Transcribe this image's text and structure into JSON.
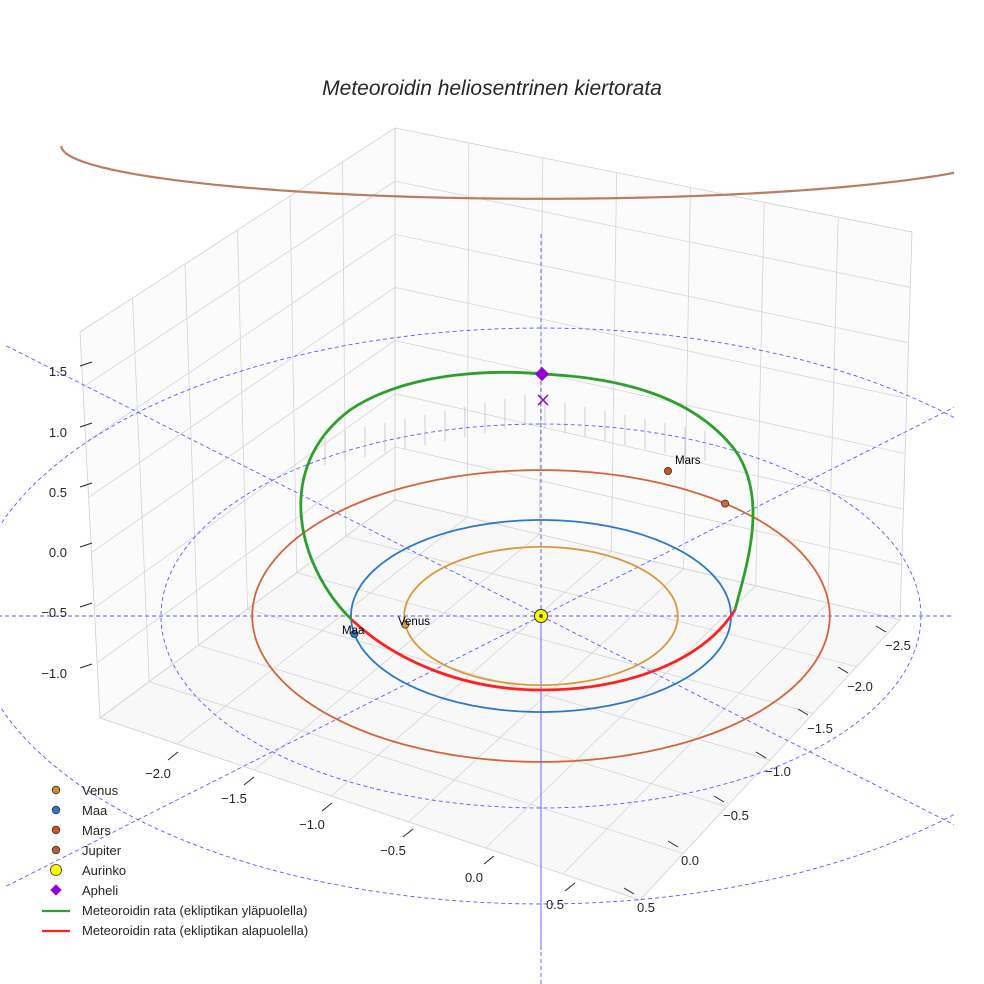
{
  "chart_data": {
    "type": "3d-line",
    "title": "Meteoroidin heliosentrinen kiertorata",
    "axes": {
      "x": {
        "ticks": [
          "−2.0",
          "−1.5",
          "−1.0",
          "−0.5",
          "0.0",
          "0.5"
        ],
        "range": [
          -2.3,
          0.7
        ]
      },
      "y": {
        "ticks": [
          "−2.5",
          "−2.0",
          "−1.5",
          "−1.0",
          "−0.5",
          "0.0",
          "0.5"
        ],
        "range": [
          -2.7,
          0.7
        ]
      },
      "z": {
        "ticks": [
          "−1.0",
          "−0.5",
          "0.0",
          "0.5",
          "1.0",
          "1.5"
        ],
        "range": [
          -1.45,
          1.75
        ]
      }
    },
    "planets": [
      {
        "name": "Venus",
        "orbit_radius_au": 0.72,
        "color": "#d99a3c",
        "label": "Venus"
      },
      {
        "name": "Maa",
        "orbit_radius_au": 1.0,
        "color": "#2e79c7",
        "label": "Maa"
      },
      {
        "name": "Mars",
        "orbit_radius_au": 1.52,
        "color": "#d4643a",
        "label": "Mars"
      },
      {
        "name": "Jupiter",
        "orbit_radius_au": 5.2,
        "color": "#b87e5e",
        "label": ""
      }
    ],
    "sun": {
      "name": "Aurinko",
      "color": "#ffff00"
    },
    "meteoroid": {
      "above_ecliptic": {
        "name": "Meteoroidin rata (ekliptikan yläpuolella)",
        "color": "#2ca02c"
      },
      "below_ecliptic": {
        "name": "Meteoroidin rata (ekliptikan alapuolella)",
        "color": "#ff2020"
      }
    },
    "aphelion": {
      "name": "Apheli",
      "color": "#9400d3",
      "z_au": 1.45
    },
    "reference_grid": {
      "circles_au": [
        1,
        2,
        3
      ],
      "color": "#5a5aff"
    }
  },
  "legend": [
    {
      "label": "Venus",
      "kind": "marker",
      "color": "#d98a1e",
      "shape": "circle"
    },
    {
      "label": "Maa",
      "kind": "marker",
      "color": "#2e79c7",
      "shape": "circle"
    },
    {
      "label": "Mars",
      "kind": "marker",
      "color": "#d4501e",
      "shape": "circle"
    },
    {
      "label": "Jupiter",
      "kind": "marker",
      "color": "#b0603a",
      "shape": "circle"
    },
    {
      "label": "Aurinko",
      "kind": "marker",
      "color": "#ffff00",
      "shape": "big-circle"
    },
    {
      "label": "Apheli",
      "kind": "marker",
      "color": "#9400d3",
      "shape": "diamond"
    },
    {
      "label": "Meteoroidin rata (ekliptikan yläpuolella)",
      "kind": "line",
      "color": "#2ca02c"
    },
    {
      "label": "Meteoroidin rata (ekliptikan alapuolella)",
      "kind": "line",
      "color": "#ff2020"
    }
  ]
}
